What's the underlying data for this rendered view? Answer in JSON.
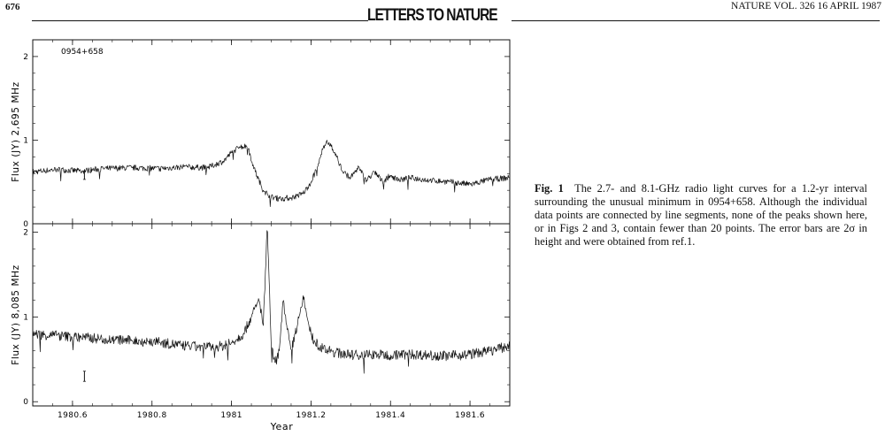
{
  "header": {
    "page_number": "676",
    "journal_title": "LETTERS TO NATURE",
    "issue": "NATURE VOL. 326 16 APRIL 1987"
  },
  "caption": {
    "label": "Fig. 1",
    "text": "The 2.7- and 8.1-GHz radio light curves for a 1.2-yr interval surrounding the unusual minimum in 0954+658. Although the individual data points are connected by line segments, none of the peaks shown here, or in Figs 2 and 3, contain fewer than 20 points. The error bars are 2σ in height and were obtained from ref.1."
  },
  "chart_data": [
    {
      "type": "line",
      "annotation": "0954+658",
      "ylabel": "Flux (JY) 2,695 MHz",
      "xlabel": "",
      "xlim": [
        1980.5,
        1981.7
      ],
      "ylim": [
        0,
        2.2
      ],
      "yticks": [
        "0",
        "1",
        "2"
      ],
      "yticks_values": [
        0,
        1,
        2
      ],
      "grid": false,
      "error_bar": {
        "x": 1980.63,
        "y": 0.58,
        "half_height": 0.05
      },
      "series": [
        {
          "x": [
            1980.5,
            1980.56,
            1980.62,
            1980.68,
            1980.75,
            1980.82,
            1980.88,
            1980.94,
            1980.98,
            1981.0,
            1981.02,
            1981.04,
            1981.06,
            1981.08,
            1981.1,
            1981.12,
            1981.15,
            1981.18,
            1981.2,
            1981.22,
            1981.23,
            1981.24,
            1981.26,
            1981.28,
            1981.3,
            1981.32,
            1981.34,
            1981.36,
            1981.38,
            1981.4,
            1981.42,
            1981.45,
            1981.5,
            1981.55,
            1981.6,
            1981.65,
            1981.7
          ],
          "y": [
            0.62,
            0.65,
            0.63,
            0.66,
            0.67,
            0.66,
            0.68,
            0.67,
            0.75,
            0.85,
            0.92,
            0.93,
            0.62,
            0.4,
            0.32,
            0.3,
            0.31,
            0.36,
            0.5,
            0.72,
            0.9,
            1.0,
            0.85,
            0.62,
            0.55,
            0.68,
            0.52,
            0.62,
            0.5,
            0.58,
            0.52,
            0.55,
            0.52,
            0.5,
            0.47,
            0.53,
            0.55
          ]
        }
      ]
    },
    {
      "type": "line",
      "ylabel": "Flux (JY) 8,085 MHz",
      "xlabel": "Year",
      "xlim": [
        1980.5,
        1981.7
      ],
      "ylim": [
        -0.05,
        2.1
      ],
      "xticks": [
        "1980.6",
        "1980.8",
        "1981",
        "1981.2",
        "1981.4",
        "1981.6"
      ],
      "xticks_values": [
        1980.6,
        1980.8,
        1981.0,
        1981.2,
        1981.4,
        1981.6
      ],
      "yticks": [
        "0",
        "1",
        "2"
      ],
      "yticks_values": [
        0,
        1,
        2
      ],
      "grid": false,
      "error_bar": {
        "x": 1980.63,
        "y": 0.3,
        "half_height": 0.06
      },
      "series": [
        {
          "x": [
            1980.5,
            1980.56,
            1980.62,
            1980.68,
            1980.75,
            1980.82,
            1980.88,
            1980.94,
            1980.98,
            1981.0,
            1981.03,
            1981.05,
            1981.07,
            1981.08,
            1981.09,
            1981.1,
            1981.11,
            1981.12,
            1981.13,
            1981.14,
            1981.15,
            1981.16,
            1981.17,
            1981.18,
            1981.19,
            1981.2,
            1981.21,
            1981.23,
            1981.26,
            1981.3,
            1981.35,
            1981.4,
            1981.45,
            1981.5,
            1981.55,
            1981.6,
            1981.65,
            1981.7
          ],
          "y": [
            0.8,
            0.78,
            0.76,
            0.74,
            0.72,
            0.7,
            0.66,
            0.64,
            0.66,
            0.7,
            0.8,
            1.0,
            1.2,
            0.9,
            2.1,
            0.65,
            0.45,
            0.6,
            1.22,
            0.85,
            0.6,
            0.8,
            1.0,
            1.25,
            1.0,
            0.8,
            0.7,
            0.62,
            0.58,
            0.55,
            0.56,
            0.55,
            0.56,
            0.55,
            0.54,
            0.56,
            0.6,
            0.66
          ]
        }
      ]
    }
  ]
}
